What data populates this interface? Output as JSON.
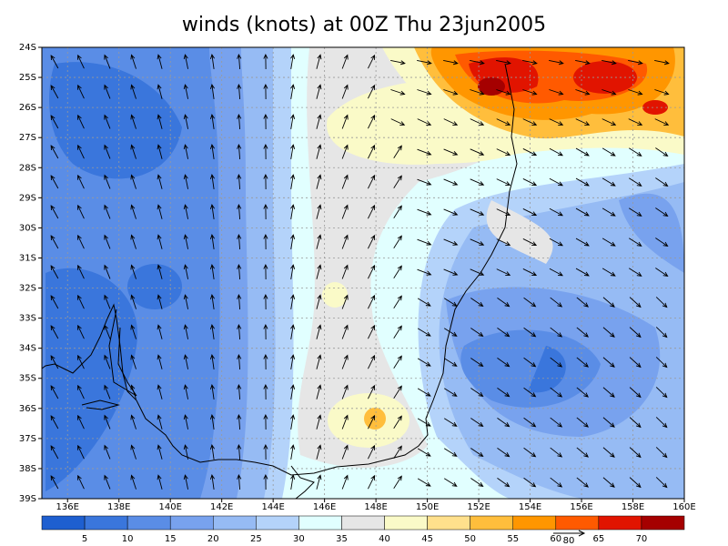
{
  "title": "winds (knots) at 00Z Thu 23jun2005",
  "lat_labels": [
    "24S",
    "25S",
    "26S",
    "27S",
    "28S",
    "29S",
    "30S",
    "31S",
    "32S",
    "33S",
    "34S",
    "35S",
    "36S",
    "37S",
    "38S",
    "39S"
  ],
  "lon_labels": [
    "136E",
    "138E",
    "140E",
    "142E",
    "144E",
    "146E",
    "148E",
    "150E",
    "152E",
    "154E",
    "156E",
    "158E",
    "160E"
  ],
  "colorbar": {
    "labels": [
      5,
      10,
      15,
      20,
      25,
      30,
      35,
      40,
      45,
      50,
      55,
      60,
      65,
      70
    ],
    "colors": [
      "#1e5fd0",
      "#3a76dc",
      "#5a8de6",
      "#78a2ee",
      "#96bbf4",
      "#b4d3fa",
      "#e1ffff",
      "#e6e6e6",
      "#fafac8",
      "#ffe08c",
      "#ffbe3c",
      "#ff9600",
      "#ff5a00",
      "#e11400",
      "#a50000"
    ]
  },
  "reference_vector": "80"
}
